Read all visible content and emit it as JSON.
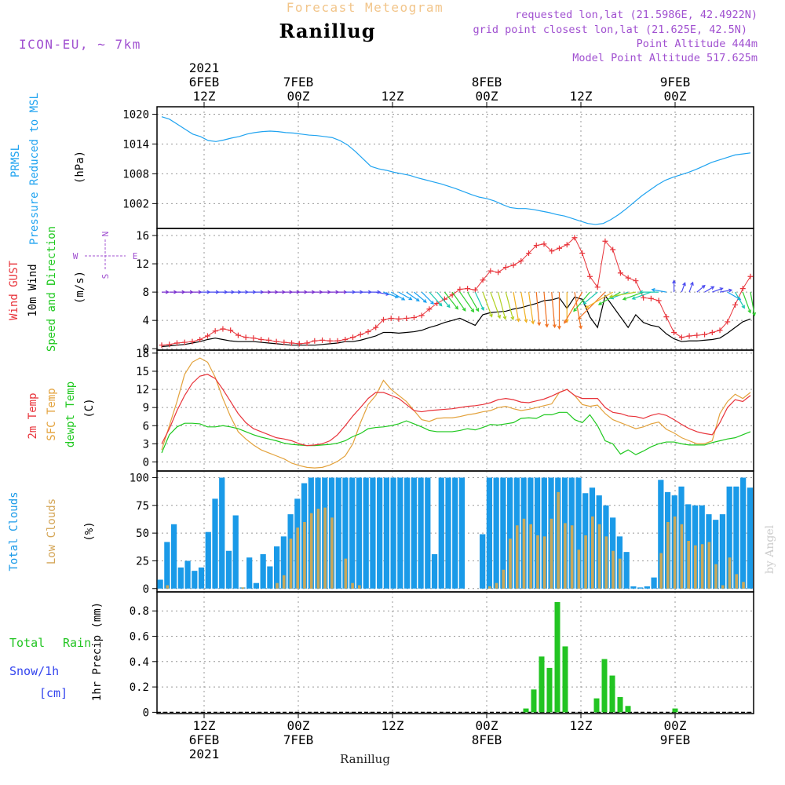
{
  "header": {
    "subtitle": "Forecast Meteogram",
    "title": "Ranillug",
    "model": "ICON-EU, ~ 7km",
    "requested": "requested lon,lat (21.5986E, 42.4922N)",
    "gridpoint": "grid point closest lon,lat (21.625E, 42.5N)",
    "point_alt": "Point Altitude 444m",
    "model_alt": "Model Point Altitude 517.625m",
    "footer": "Ranillug",
    "watermark": "by Angel"
  },
  "time_axis": {
    "top": [
      {
        "h": 12,
        "lines": [
          "2021",
          "6FEB",
          "12Z"
        ]
      },
      {
        "h": 24,
        "lines": [
          "7FEB",
          "00Z"
        ]
      },
      {
        "h": 36,
        "lines": [
          "12Z"
        ]
      },
      {
        "h": 48,
        "lines": [
          "8FEB",
          "00Z"
        ]
      },
      {
        "h": 60,
        "lines": [
          "12Z"
        ]
      },
      {
        "h": 72,
        "lines": [
          "9FEB",
          "00Z"
        ]
      }
    ],
    "bottom": [
      {
        "h": 12,
        "lines": [
          "12Z",
          "6FEB",
          "2021"
        ]
      },
      {
        "h": 24,
        "lines": [
          "00Z",
          "7FEB"
        ]
      },
      {
        "h": 36,
        "lines": [
          "12Z"
        ]
      },
      {
        "h": 48,
        "lines": [
          "00Z",
          "8FEB"
        ]
      },
      {
        "h": 60,
        "lines": [
          "12Z"
        ]
      },
      {
        "h": 72,
        "lines": [
          "00Z",
          "9FEB"
        ]
      }
    ]
  },
  "panel_labels": {
    "pressure": {
      "l1": "PRMSL",
      "l2": "Pressure Reduced to MSL",
      "unit": "(hPa)"
    },
    "wind": {
      "l1": "Wind GUST",
      "l2": "10m Wind",
      "l3": "Speed and Direction",
      "unit": "(m/s)",
      "compass_n": "N",
      "compass_s": "S",
      "compass_w": "W",
      "compass_e": "E"
    },
    "temp": {
      "l1": "2m Temp",
      "l2": "SFC Temp",
      "l3": "dewpt Temp",
      "unit": "(C)"
    },
    "clouds": {
      "l1": "Total Clouds",
      "l2": "Low Clouds",
      "unit": "(%)"
    },
    "precip": {
      "l1": "Total",
      "l1b": "Rain",
      "l2": "Snow/1h",
      "l3": "[cm]",
      "unit": "1hr Precip (mm)"
    }
  },
  "colors": {
    "pressure": "#1fa3f0",
    "gust": "#e8333a",
    "wind": "#000000",
    "temp": "#e8333a",
    "sfc": "#e3a23c",
    "dewpt": "#1ec81e",
    "total_cloud": "#1a9ae8",
    "low_cloud": "#c9a85a",
    "rain": "#22c422",
    "snow": "#3344ee",
    "purple": "#a050d0",
    "grid": "#999999"
  },
  "chart_data": {
    "type": "meteogram",
    "x_range_hours": [
      6,
      82
    ],
    "x_unit": "hours since 2021-02-06 00Z",
    "pressure": {
      "ylim": [
        997,
        1021.5
      ],
      "ticks": [
        1020,
        1014,
        1008,
        1002
      ],
      "values": [
        1019.5,
        1019,
        1018,
        1017,
        1016,
        1015.5,
        1014.7,
        1014.5,
        1014.8,
        1015.2,
        1015.5,
        1016,
        1016.3,
        1016.5,
        1016.6,
        1016.5,
        1016.3,
        1016.2,
        1016,
        1015.8,
        1015.7,
        1015.5,
        1015.3,
        1014.7,
        1013.8,
        1012.5,
        1011,
        1009.5,
        1009,
        1008.7,
        1008.3,
        1008,
        1007.7,
        1007.2,
        1006.8,
        1006.4,
        1006,
        1005.5,
        1005,
        1004.4,
        1003.8,
        1003.3,
        1003,
        1002.5,
        1001.8,
        1001.2,
        1001,
        1001,
        1000.8,
        1000.5,
        1000.2,
        999.8,
        999.5,
        999,
        998.5,
        998,
        997.8,
        998,
        998.8,
        999.8,
        1001,
        1002.3,
        1003.6,
        1004.7,
        1005.8,
        1006.7,
        1007.3,
        1007.8,
        1008.3,
        1008.9,
        1009.6,
        1010.3,
        1010.8,
        1011.3,
        1011.8,
        1012,
        1012.2
      ]
    },
    "wind": {
      "ylim": [
        -0.2,
        17
      ],
      "ticks": [
        16,
        12,
        8,
        4,
        0
      ],
      "gust": [
        0.5,
        0.6,
        0.8,
        0.9,
        1,
        1.3,
        1.8,
        2.5,
        2.8,
        2.6,
        1.9,
        1.6,
        1.5,
        1.3,
        1.2,
        1,
        0.9,
        0.8,
        0.7,
        0.8,
        1.1,
        1.2,
        1.1,
        1.1,
        1.3,
        1.6,
        2,
        2.4,
        3,
        4.1,
        4.3,
        4.2,
        4.3,
        4.4,
        4.7,
        5.6,
        6.4,
        7,
        7.6,
        8.4,
        8.5,
        8.3,
        9.7,
        11,
        10.8,
        11.5,
        11.8,
        12.4,
        13.5,
        14.6,
        14.8,
        13.8,
        14.2,
        14.7,
        15.7,
        13.5,
        10.2,
        8.7,
        15.2,
        14,
        10.7,
        10,
        9.6,
        7.2,
        7.1,
        6.8,
        4.5,
        2.3,
        1.6,
        1.8,
        1.9,
        2,
        2.3,
        2.6,
        3.8,
        6.2,
        8.5,
        10.2
      ],
      "wind": [
        0.3,
        0.4,
        0.5,
        0.6,
        0.8,
        1,
        1.3,
        1.5,
        1.3,
        1.1,
        1,
        1,
        1,
        0.9,
        0.8,
        0.7,
        0.6,
        0.5,
        0.5,
        0.5,
        0.5,
        0.6,
        0.7,
        0.8,
        1,
        1,
        1.2,
        1.5,
        1.8,
        2.3,
        2.3,
        2.2,
        2.3,
        2.4,
        2.6,
        3,
        3.3,
        3.7,
        4,
        4.3,
        3.8,
        3.3,
        4.8,
        5.1,
        5.2,
        5.3,
        5.6,
        5.8,
        6.1,
        6.4,
        6.8,
        6.9,
        7.2,
        5.7,
        7.3,
        7,
        4.5,
        3,
        7.5,
        6,
        4.5,
        3,
        4.8,
        3.7,
        3.3,
        3.1,
        2.1,
        1.4,
        1,
        1.1,
        1.1,
        1.2,
        1.3,
        1.5,
        2.2,
        3,
        3.8,
        4.2
      ],
      "dir_deg": [
        270,
        270,
        270,
        270,
        270,
        270,
        270,
        270,
        270,
        270,
        270,
        270,
        270,
        270,
        270,
        270,
        270,
        270,
        270,
        270,
        270,
        270,
        270,
        270,
        270,
        270,
        270,
        270,
        280,
        290,
        300,
        300,
        305,
        310,
        315,
        318,
        320,
        322,
        325,
        325,
        330,
        335,
        340,
        340,
        345,
        345,
        350,
        350,
        352,
        355,
        355,
        355,
        0,
        0,
        350,
        30,
        40,
        50,
        45,
        60,
        60,
        70,
        80,
        70,
        70,
        90,
        100,
        180,
        200,
        200,
        230,
        240,
        250,
        260,
        300,
        330,
        340,
        350
      ]
    },
    "temp": {
      "ylim": [
        -1.5,
        18.5
      ],
      "ticks": [
        18,
        15,
        12,
        9,
        6,
        3,
        0
      ],
      "t2m": [
        3,
        5.5,
        8.5,
        11,
        13,
        14.2,
        14.5,
        13.8,
        12,
        10,
        8,
        6.5,
        5.5,
        5,
        4.5,
        4,
        3.8,
        3.5,
        3,
        2.7,
        2.8,
        3.0,
        3.5,
        4.5,
        6,
        7.6,
        9,
        10.5,
        11.5,
        11.5,
        11,
        10.5,
        9.5,
        8.5,
        8.3,
        8.5,
        8.6,
        8.7,
        8.8,
        9,
        9.2,
        9.3,
        9.5,
        9.8,
        10.3,
        10.5,
        10.3,
        9.9,
        9.8,
        10.1,
        10.4,
        10.9,
        11.5,
        12,
        11,
        10.5,
        10.5,
        10.5,
        9,
        8.2,
        8,
        7.6,
        7.5,
        7.2,
        7.7,
        8,
        7.7,
        7,
        6.2,
        5.5,
        5,
        4.7,
        4.5,
        6.5,
        9,
        10.3,
        10,
        11
      ]
    },
    "sfc": {
      "values": [
        2,
        6,
        10,
        14.5,
        16.5,
        17.2,
        16.5,
        14,
        10.5,
        7.5,
        5,
        3.8,
        2.8,
        2,
        1.5,
        1,
        0.5,
        -0.2,
        -0.6,
        -0.9,
        -1,
        -0.9,
        -0.5,
        0.1,
        1,
        3,
        6.5,
        9.5,
        11,
        13.5,
        12,
        11,
        10,
        8.5,
        7,
        6.7,
        7.2,
        7.3,
        7.3,
        7.5,
        7.8,
        8,
        8.3,
        8.5,
        9,
        9.2,
        8.8,
        8.5,
        8.7,
        9,
        9.3,
        9.6,
        11.5,
        12,
        11,
        9.5,
        9.2,
        9.4,
        8,
        7,
        6.5,
        6,
        5.5,
        5.8,
        6.3,
        6.6,
        5.4,
        4.8,
        4.0,
        3.5,
        3,
        3,
        3.5,
        8,
        10,
        11.2,
        10.5,
        11.5
      ]
    },
    "dewpt": {
      "values": [
        1.5,
        4.5,
        5.8,
        6.4,
        6.4,
        6.3,
        5.8,
        5.8,
        6,
        5.8,
        5.5,
        5,
        4.5,
        4.1,
        3.8,
        3.5,
        3.1,
        2.9,
        2.8,
        2.7,
        2.7,
        2.8,
        2.9,
        3.1,
        3.5,
        4.2,
        4.7,
        5.5,
        5.7,
        5.8,
        6,
        6.3,
        6.8,
        6.3,
        5.8,
        5.2,
        5,
        5,
        5,
        5.2,
        5.5,
        5.3,
        5.7,
        6.2,
        6.1,
        6.3,
        6.5,
        7.2,
        7.3,
        7.2,
        7.8,
        7.8,
        8.2,
        8.2,
        7,
        6.5,
        7.8,
        6,
        3.5,
        3,
        1.3,
        2,
        1.2,
        1.8,
        2.5,
        3,
        3.3,
        3.3,
        3,
        2.8,
        2.8,
        2.8,
        3.2,
        3.5,
        3.8,
        4,
        4.5,
        5
      ]
    },
    "clouds": {
      "ylim": [
        -3,
        106
      ],
      "ticks": [
        100,
        75,
        50,
        25,
        0
      ],
      "total": [
        8,
        42,
        58,
        19,
        25,
        16,
        19,
        51,
        81,
        100,
        34,
        66,
        1,
        28,
        5,
        31,
        20,
        38,
        47,
        67,
        81,
        95,
        100,
        100,
        100,
        100,
        100,
        100,
        100,
        100,
        100,
        100,
        100,
        100,
        100,
        100,
        100,
        100,
        100,
        100,
        31,
        100,
        100,
        100,
        100,
        0,
        0,
        49,
        100,
        100,
        100,
        100,
        100,
        100,
        100,
        100,
        100,
        100,
        100,
        100,
        100,
        100,
        86,
        91,
        84,
        75,
        64,
        47,
        33,
        2,
        1,
        2,
        10,
        98,
        87,
        84,
        92,
        76,
        75,
        75,
        67,
        62,
        67,
        92,
        92,
        100,
        91
      ],
      "low": [
        0,
        3,
        0,
        0,
        0,
        0,
        0,
        0,
        0,
        0,
        0,
        0,
        1,
        0,
        0,
        0,
        0,
        5,
        12,
        45,
        55,
        60,
        68,
        72,
        73,
        64,
        0,
        27,
        5,
        3,
        0,
        0,
        0,
        0,
        0,
        0,
        0,
        0,
        0,
        0,
        0,
        0,
        0,
        0,
        0,
        0,
        0,
        0,
        2,
        5,
        17,
        45,
        57,
        63,
        58,
        48,
        47,
        63,
        87,
        59,
        57,
        35,
        48,
        65,
        58,
        47,
        34,
        27,
        0,
        0,
        0,
        0,
        0,
        32,
        60,
        65,
        58,
        43,
        39,
        40,
        42,
        22,
        3,
        28,
        13,
        6,
        0
      ]
    },
    "precip": {
      "ylim": [
        -0.01,
        0.95
      ],
      "ticks": [
        0.8,
        0.6,
        0.4,
        0.2,
        0
      ],
      "rain_hour_offsets": [
        53,
        54,
        55,
        56,
        57,
        58,
        59,
        60,
        61,
        62,
        63,
        64,
        65,
        66,
        67,
        68,
        69,
        70,
        71,
        72
      ],
      "rain_values": [
        0.03,
        0.18,
        0.44,
        0.35,
        0.87,
        0.52,
        0,
        0,
        0,
        0.11,
        0.42,
        0.29,
        0.12,
        0.05,
        0,
        0,
        0,
        0,
        0,
        0.03
      ]
    }
  }
}
